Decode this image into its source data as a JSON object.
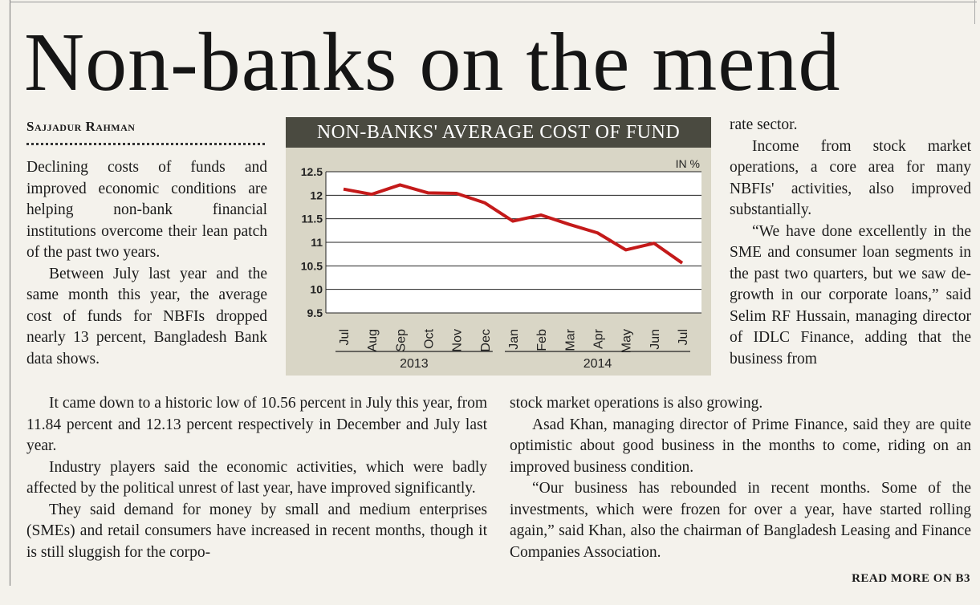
{
  "headline": "Non-banks on the mend",
  "byline": "Sajjadur Rahman",
  "column1": [
    "Declining costs of funds and improved economic conditions are helping non-bank financial institutions overcome their lean patch of the past two years.",
    "Between July last year and the same month this year, the average cost of funds for NBFIs dropped nearly 13 percent, Bangladesh Bank data shows."
  ],
  "column1_bottom": [
    "It came down to a historic low of 10.56 percent in July this year, from 11.84 percent and 12.13 percent respectively in December and July last year.",
    "Industry players said the economic activities, which were badly affected by the political unrest of last year, have improved significantly.",
    "They said demand for money by small and medium enterprises (SMEs) and retail consumers have increased in recent months, though it is still sluggish for the corpo-"
  ],
  "column3": [
    "rate sector.",
    "Income from stock market operations, a core area for many NBFIs' activities, also improved substantially.",
    "“We have done excellently in the SME and consumer loan segments in the past two quarters, but we saw de-growth in our corporate loans,” said Selim RF Hussain, managing director of IDLC Finance, adding that the business from"
  ],
  "column3_bottom": [
    "stock market operations is also growing.",
    "Asad Khan, managing director of Prime Finance, said they are quite optimistic about good business in the months to come, riding on an improved business condition.",
    "“Our business has rebounded in recent months. Some of the investments, which were frozen for over a year, have started rolling again,” said Khan, also the chairman of Bangladesh Leasing and Finance Companies Association."
  ],
  "read_more": "READ MORE ON B3",
  "chart_data": {
    "type": "line",
    "title": "NON-BANKS' AVERAGE COST OF FUND",
    "unit_label": "IN %",
    "categories": [
      "Jul",
      "Aug",
      "Sep",
      "Oct",
      "Nov",
      "Dec",
      "Jan",
      "Feb",
      "Mar",
      "Apr",
      "May",
      "Jun",
      "Jul"
    ],
    "year_groups": [
      {
        "label": "2013",
        "from": 0,
        "to": 5
      },
      {
        "label": "2014",
        "from": 6,
        "to": 12
      }
    ],
    "series": [
      {
        "values": [
          12.13,
          12.02,
          12.22,
          12.05,
          12.04,
          11.84,
          11.45,
          11.58,
          11.38,
          11.2,
          10.84,
          10.98,
          10.56
        ]
      }
    ],
    "yticks": [
      "12.5",
      "12",
      "11.5",
      "11",
      "10.5",
      "10",
      "9.5"
    ],
    "ylim": [
      9.5,
      12.5
    ],
    "grid": true,
    "colors": {
      "line": "#c41a1a",
      "panel": "#d9d6c6",
      "title_bar": "#4a4a40",
      "plot_bg": "#ffffff"
    }
  }
}
